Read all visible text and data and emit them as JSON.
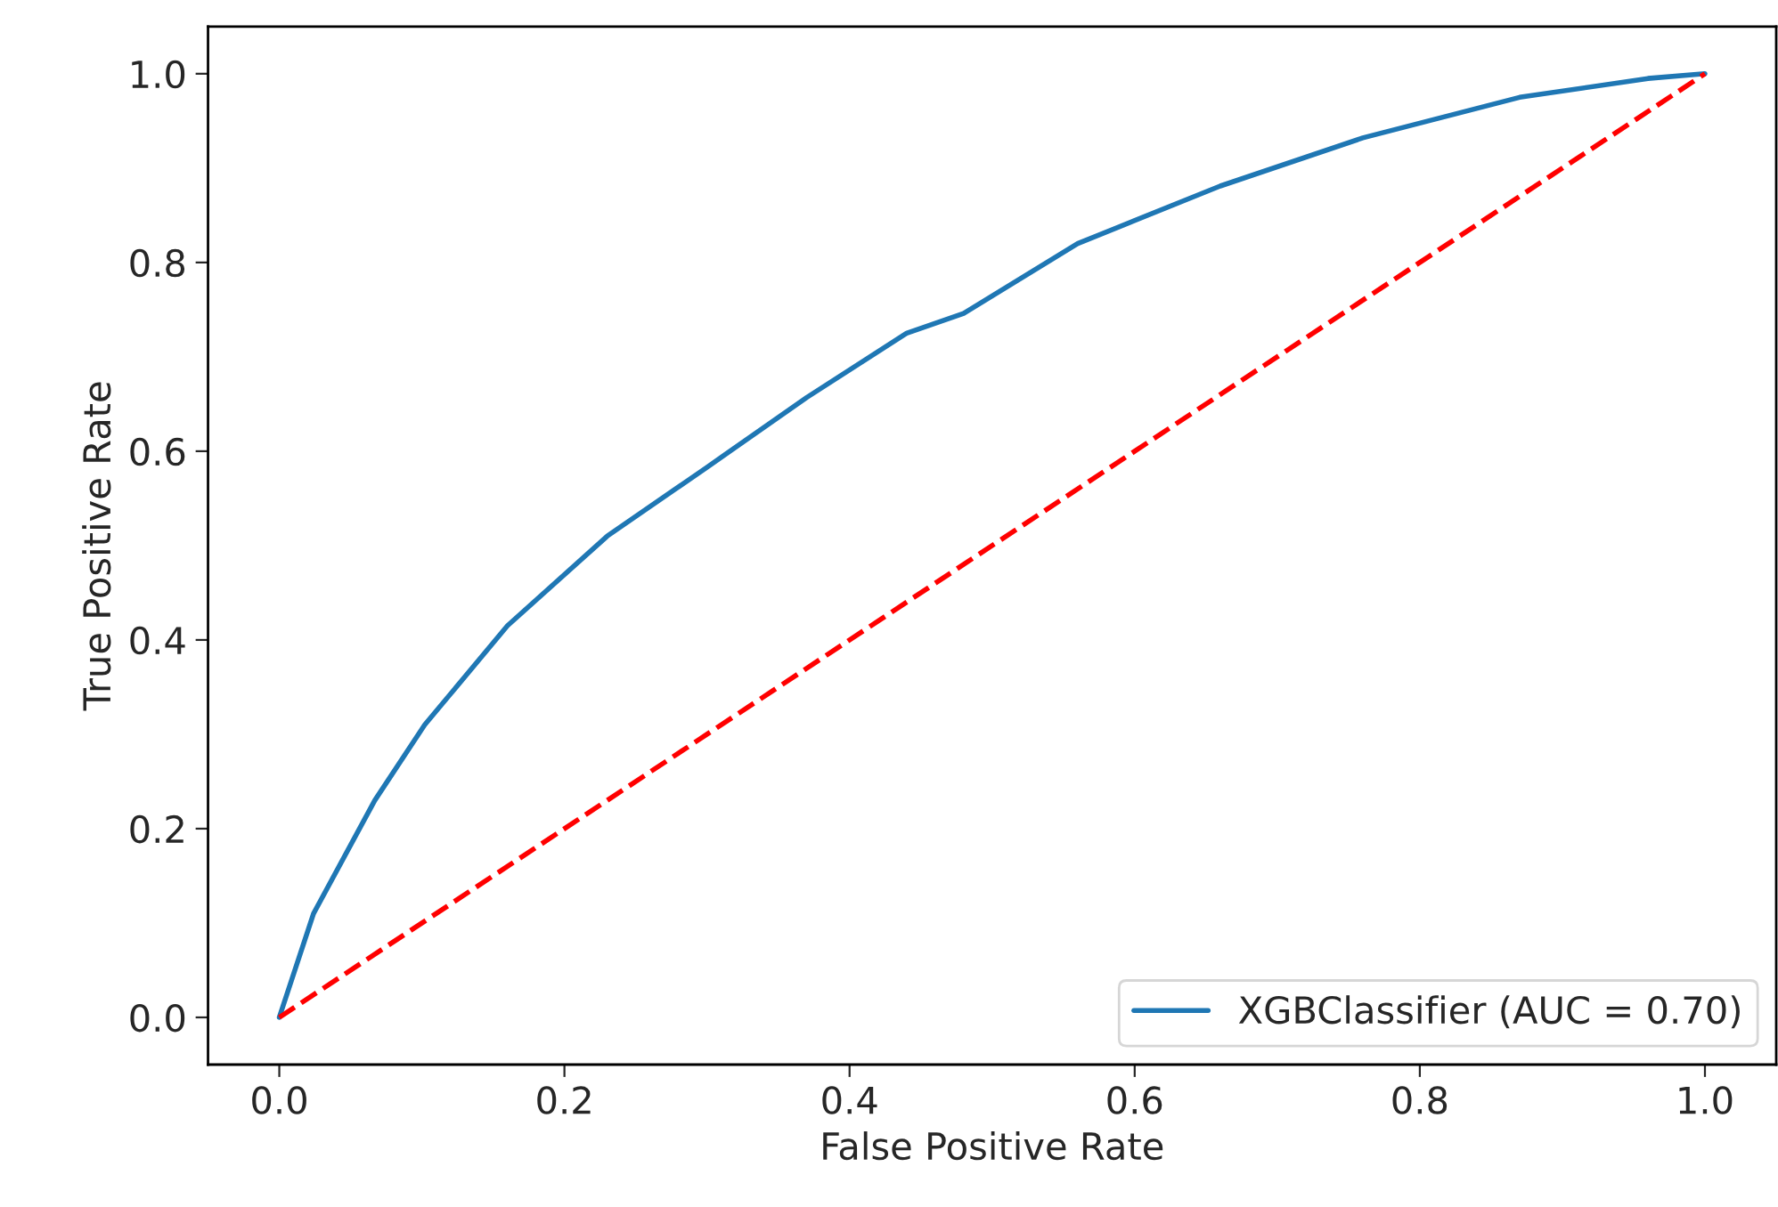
{
  "chart_data": {
    "type": "line",
    "xlabel": "False Positive Rate",
    "ylabel": "True Positive Rate",
    "xlim": [
      -0.05,
      1.05
    ],
    "ylim": [
      -0.05,
      1.05
    ],
    "xticks": [
      {
        "value": 0,
        "label": "0.0"
      },
      0.2,
      0.4,
      0.6,
      0.8,
      {
        "value": 1,
        "label": "1.0"
      }
    ],
    "yticks": [
      {
        "value": 0,
        "label": "0.0"
      },
      0.2,
      0.4,
      0.6,
      0.8,
      {
        "value": 1,
        "label": "1.0"
      }
    ],
    "grid": false,
    "legend": "bottom right",
    "series": [
      {
        "name": "XGBClassifier (AUC = 0.70)",
        "color": "#1f77b4",
        "line_style": "solid",
        "x": [
          0,
          0.024,
          0.067,
          0.102,
          0.16,
          0.23,
          0.3,
          0.37,
          0.44,
          0.48,
          0.56,
          0.66,
          0.76,
          0.87,
          0.96,
          1.0
        ],
        "values": [
          0,
          0.11,
          0.23,
          0.31,
          0.415,
          0.51,
          0.583,
          0.657,
          0.725,
          0.746,
          0.82,
          0.881,
          0.932,
          0.975,
          0.995,
          1.0
        ]
      },
      {
        "color": "#ff0000",
        "line_style": "dashed",
        "x": [
          0,
          1
        ],
        "values": [
          0,
          1
        ]
      }
    ]
  }
}
